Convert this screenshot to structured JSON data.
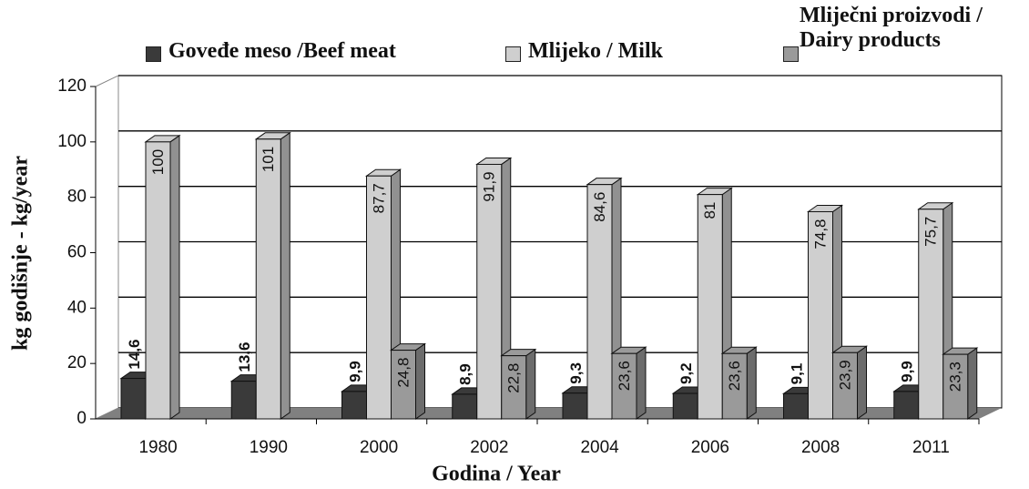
{
  "chart_data": {
    "type": "bar3d",
    "categories": [
      "1980",
      "1990",
      "2000",
      "2002",
      "2004",
      "2006",
      "2008",
      "2011"
    ],
    "series": [
      {
        "name": "Goveđe meso /Beef meat",
        "color": "#3a3a3a",
        "values": [
          14.6,
          13.6,
          9.9,
          8.9,
          9.3,
          9.2,
          9.1,
          9.9
        ],
        "value_labels": [
          "14,6",
          "13,6",
          "9,9",
          "8,9",
          "9,3",
          "9,2",
          "9,1",
          "9,9"
        ]
      },
      {
        "name": "Mlijeko / Milk",
        "color": "#cfcfcf",
        "values": [
          100,
          101,
          87.7,
          91.9,
          84.6,
          81,
          74.8,
          75.7
        ],
        "value_labels": [
          "100",
          "101",
          "87,7",
          "91,9",
          "84,6",
          "81",
          "74,8",
          "75,7"
        ]
      },
      {
        "name": "Mliječni proizvodi / Dairy products",
        "color": "#9a9a9a",
        "values": [
          null,
          null,
          24.8,
          22.8,
          23.6,
          23.6,
          23.9,
          23.3
        ],
        "value_labels": [
          null,
          null,
          "24,8",
          "22,8",
          "23,6",
          "23,6",
          "23,9",
          "23,3"
        ]
      }
    ],
    "xlabel": "Godina / Year",
    "ylabel": "kg godišnje - kg/year",
    "ylim": [
      0,
      120
    ],
    "yticks": [
      0,
      20,
      40,
      60,
      80,
      100,
      120
    ],
    "grid": true
  }
}
